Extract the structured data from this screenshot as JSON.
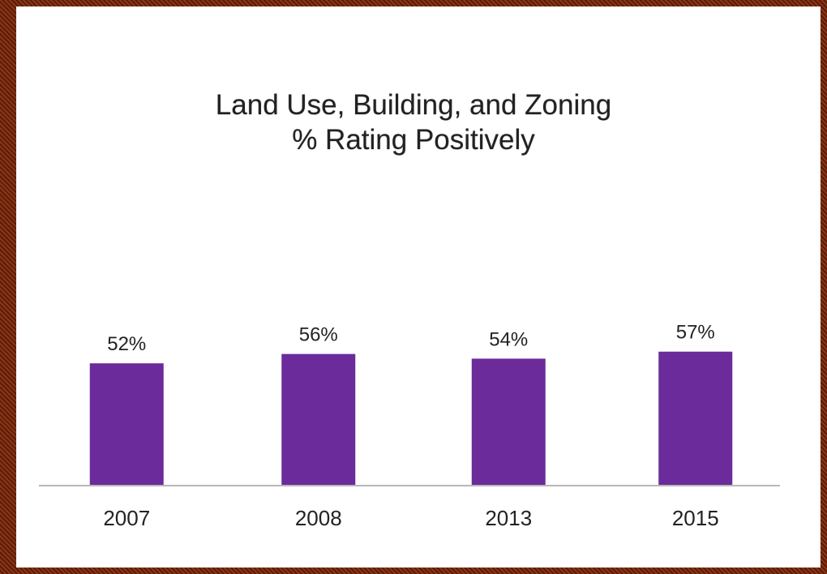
{
  "colors": {
    "bar": "#6b2b9a",
    "axis": "#b8b8b8",
    "text": "#222222",
    "panel": "#ffffff",
    "frame": "#7a2a12"
  },
  "chart_data": {
    "type": "bar",
    "title": "Land Use, Building, and Zoning",
    "subtitle": "% Rating Positively",
    "categories": [
      "2007",
      "2008",
      "2013",
      "2015"
    ],
    "values": [
      52,
      56,
      54,
      57
    ],
    "value_labels": [
      "52%",
      "56%",
      "54%",
      "57%"
    ],
    "xlabel": "",
    "ylabel": "",
    "ylim": [
      0,
      100
    ],
    "grid": false,
    "legend": "none"
  }
}
